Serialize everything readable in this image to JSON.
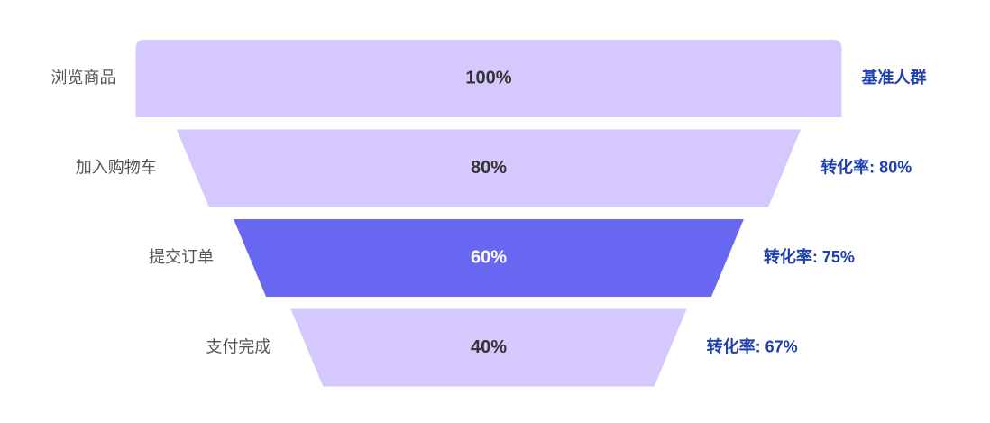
{
  "chart_data": {
    "type": "funnel",
    "categories": [
      "浏览商品",
      "加入购物车",
      "提交订单",
      "支付完成"
    ],
    "values": [
      100,
      80,
      60,
      40
    ],
    "value_labels": [
      "100%",
      "80%",
      "60%",
      "40%"
    ],
    "colors": [
      "#d4c8fc",
      "#d4c8fc",
      "#6767f2",
      "#d4c8fc"
    ],
    "annotations": [
      "基准人群",
      "转化率: 80%",
      "转化率: 75%",
      "转化率: 67%"
    ]
  }
}
